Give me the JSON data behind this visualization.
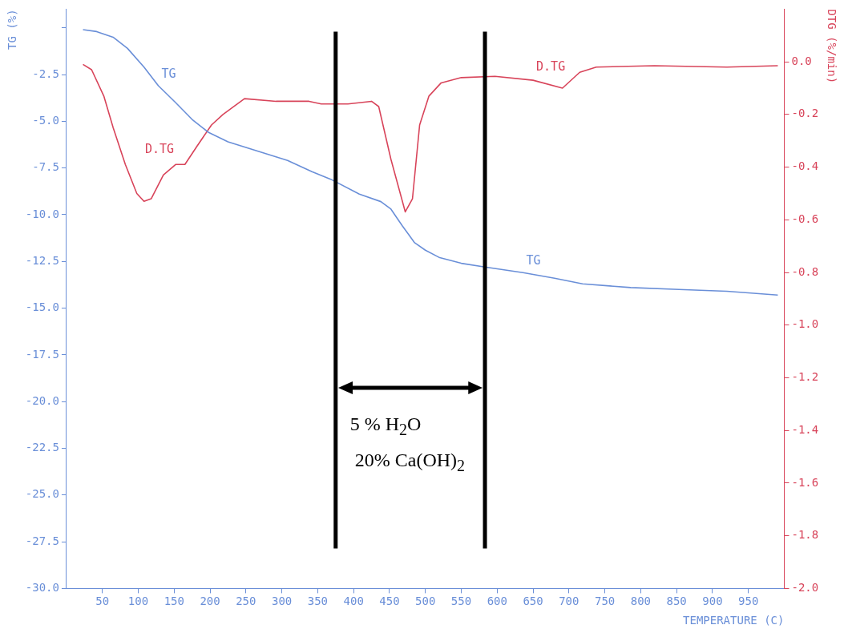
{
  "chart_data": {
    "type": "line",
    "xlabel": "TEMPERATURE (C)",
    "ylabel": "TG (%)",
    "y2label": "DTG (%/min)",
    "xlim": [
      0,
      1000
    ],
    "xticks": [
      50,
      100,
      150,
      200,
      250,
      300,
      350,
      400,
      450,
      500,
      550,
      600,
      650,
      700,
      750,
      800,
      850,
      900,
      950
    ],
    "ylim": [
      -30,
      1
    ],
    "yticks": [
      {
        "value": 0,
        "label": null
      },
      {
        "value": -2.5,
        "label": "-2.5"
      },
      {
        "value": -5,
        "label": "-5.0"
      },
      {
        "value": -7.5,
        "label": "-7.5"
      },
      {
        "value": -10,
        "label": "-10.0"
      },
      {
        "value": -12.5,
        "label": "-12.5"
      },
      {
        "value": -15,
        "label": "-15.0"
      },
      {
        "value": -17.5,
        "label": "-17.5"
      },
      {
        "value": -20,
        "label": "-20.0"
      },
      {
        "value": -22.5,
        "label": "-22.5"
      },
      {
        "value": -25,
        "label": "-25.0"
      },
      {
        "value": -27.5,
        "label": "-27.5"
      },
      {
        "value": -30,
        "label": "-30.0"
      }
    ],
    "y2lim": [
      -2.0,
      0.2
    ],
    "y2ticks": [
      {
        "value": 0,
        "label": "0.0"
      },
      {
        "value": -0.2,
        "label": "-0.2"
      },
      {
        "value": -0.4,
        "label": "-0.4"
      },
      {
        "value": -0.6,
        "label": "-0.6"
      },
      {
        "value": -0.8,
        "label": "-0.8"
      },
      {
        "value": -1.0,
        "label": "-1.0"
      },
      {
        "value": -1.2,
        "label": "-1.2"
      },
      {
        "value": -1.4,
        "label": "-1.4"
      },
      {
        "value": -1.6,
        "label": "-1.6"
      },
      {
        "value": -1.8,
        "label": "-1.8"
      },
      {
        "value": -2.0,
        "label": "-2.0"
      }
    ],
    "grid": false,
    "legend": false,
    "marker": "none",
    "line_style": "solid",
    "series": [
      {
        "name": "TG",
        "color": "#6a8fd8",
        "x": [
          23,
          42,
          65,
          85,
          108,
          128,
          152,
          175,
          198,
          225,
          258,
          308,
          342,
          368,
          408,
          438,
          452,
          468,
          485,
          500,
          520,
          550,
          583,
          636,
          680,
          719,
          786,
          853,
          920,
          991
        ],
        "values": [
          -0.1,
          -0.2,
          -0.5,
          -1.1,
          -2.1,
          -3.1,
          -4.0,
          -4.9,
          -5.6,
          -6.1,
          -6.5,
          -7.1,
          -7.7,
          -8.1,
          -8.9,
          -9.3,
          -9.7,
          -10.6,
          -11.5,
          -11.9,
          -12.3,
          -12.6,
          -12.8,
          -13.1,
          -13.4,
          -13.7,
          -13.9,
          -14.0,
          -14.1,
          -14.3
        ]
      },
      {
        "name": "D.TG",
        "color": "#d8445a",
        "axis": "y2",
        "x": [
          23,
          35,
          52,
          65,
          82,
          98,
          108,
          118,
          135,
          152,
          165,
          182,
          202,
          218,
          248,
          292,
          338,
          355,
          392,
          425,
          435,
          452,
          472,
          482,
          492,
          505,
          522,
          550,
          597,
          650,
          691,
          715,
          738,
          819,
          920,
          991
        ],
        "values": [
          -0.01,
          -0.03,
          -0.13,
          -0.25,
          -0.39,
          -0.5,
          -0.53,
          -0.52,
          -0.43,
          -0.39,
          -0.39,
          -0.32,
          -0.24,
          -0.2,
          -0.14,
          -0.15,
          -0.15,
          -0.16,
          -0.16,
          -0.15,
          -0.17,
          -0.37,
          -0.57,
          -0.52,
          -0.24,
          -0.13,
          -0.08,
          -0.06,
          -0.055,
          -0.07,
          -0.1,
          -0.04,
          -0.02,
          -0.015,
          -0.02,
          -0.015
        ]
      }
    ],
    "ref_lines": [
      {
        "axis": "x",
        "value": 375,
        "color": "#000000"
      },
      {
        "axis": "x",
        "value": 583,
        "color": "#000000"
      }
    ],
    "annotations": [
      "5 % H$_{2}$O",
      "20% Ca(OH)$_{2}$"
    ]
  }
}
